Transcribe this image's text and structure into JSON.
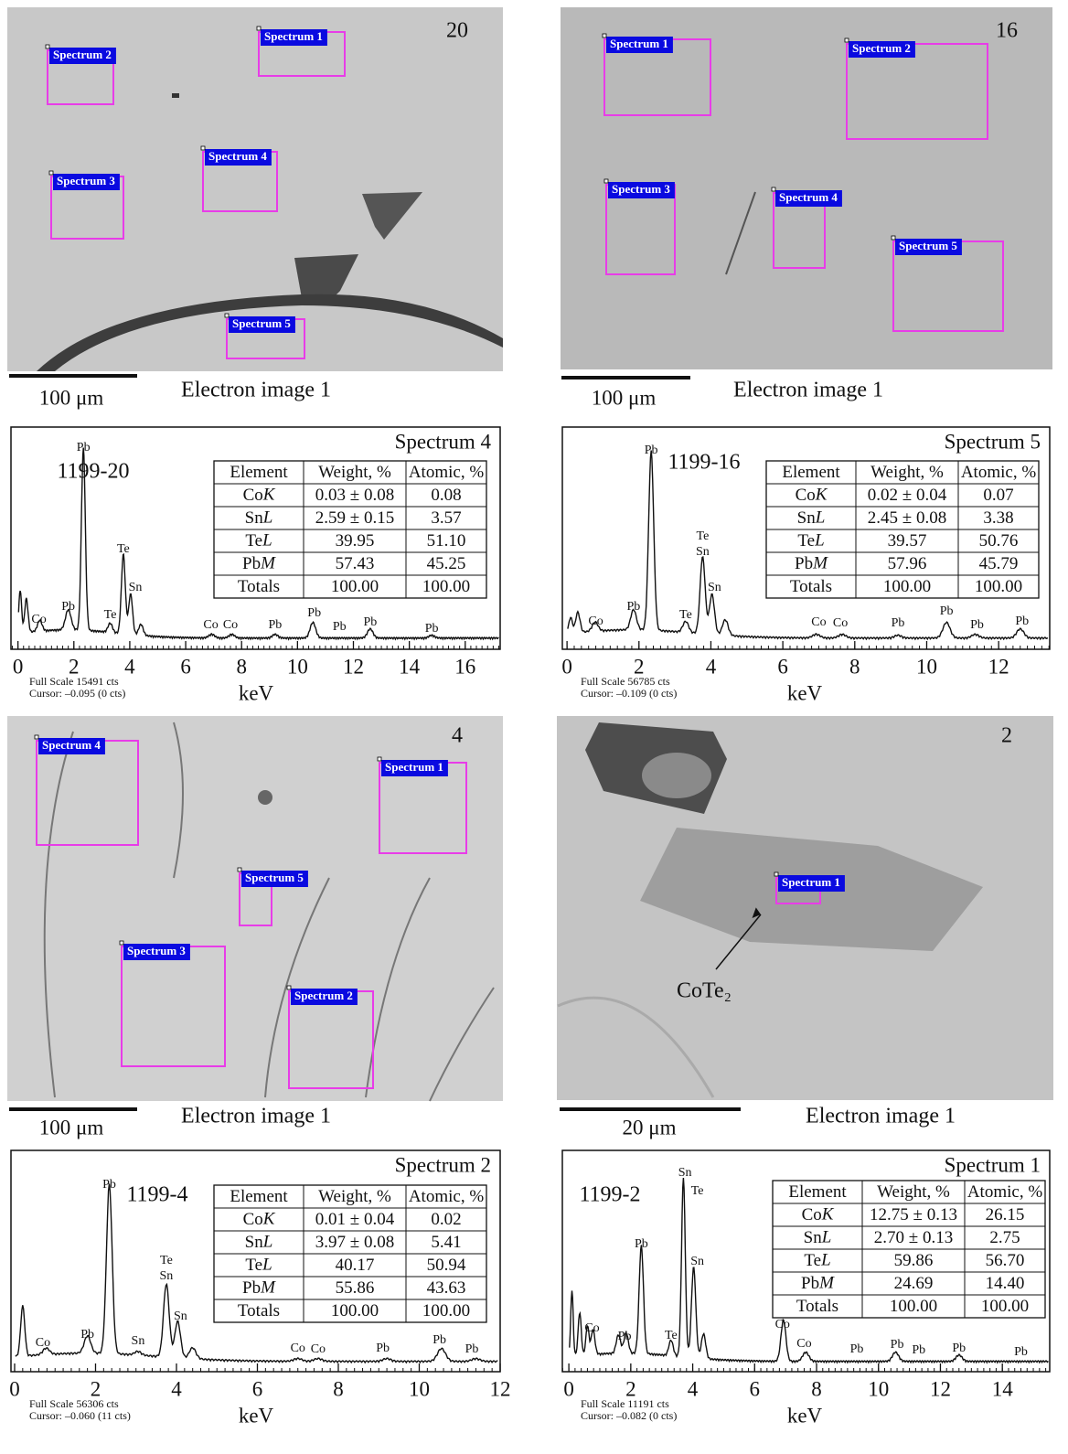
{
  "panels": [
    {
      "image": {
        "number": "20",
        "scale_bar": "100 μm",
        "caption": "Electron image 1",
        "spectra": [
          "Spectrum 1",
          "Spectrum 2",
          "Spectrum 3",
          "Spectrum 4",
          "Spectrum 5"
        ]
      },
      "spectrum": {
        "title": "Spectrum 4",
        "sample": "1199-20",
        "xlabel": "keV",
        "full_scale": "Full Scale 15491 cts",
        "cursor": "Cursor: –0.095 (0 cts)",
        "xlim": [
          -0.25,
          17.25
        ],
        "xticks": [
          0,
          2,
          4,
          6,
          8,
          10,
          12,
          14,
          16
        ],
        "peak_labels": [
          "Pb",
          "Co",
          "Pb",
          "Te",
          "Te",
          "Sn",
          "Co",
          "Co",
          "Pb",
          "Pb",
          "Pb",
          "Pb",
          "Pb"
        ],
        "table": {
          "header": [
            "Element",
            "Weight, %",
            "Atomic, %"
          ],
          "rows": [
            [
              "CoK",
              "0.03 ± 0.08",
              "0.08"
            ],
            [
              "SnL",
              "2.59 ± 0.15",
              "3.57"
            ],
            [
              "TeL",
              "39.95",
              "51.10"
            ],
            [
              "PbM",
              "57.43",
              "45.25"
            ],
            [
              "Totals",
              "100.00",
              "100.00"
            ]
          ]
        }
      }
    },
    {
      "image": {
        "number": "16",
        "scale_bar": "100 μm",
        "caption": "Electron image 1",
        "spectra": [
          "Spectrum 1",
          "Spectrum 2",
          "Spectrum 3",
          "Spectrum 4",
          "Spectrum 5"
        ]
      },
      "spectrum": {
        "title": "Spectrum 5",
        "sample": "1199-16",
        "xlabel": "keV",
        "full_scale": "Full Scale 56785 cts",
        "cursor": "Cursor: –0.109 (0 cts)",
        "xlim": [
          -0.13,
          13.42
        ],
        "xticks": [
          0,
          2,
          4,
          6,
          8,
          10,
          12
        ],
        "peak_labels": [
          "Pb",
          "Co",
          "Pb",
          "Te",
          "Te",
          "Sn",
          "Sn",
          "Co",
          "Co",
          "Pb",
          "Pb",
          "Pb",
          "Pb"
        ],
        "table": {
          "header": [
            "Element",
            "Weight, %",
            "Atomic, %"
          ],
          "rows": [
            [
              "CoK",
              "0.02 ± 0.04",
              "0.07"
            ],
            [
              "SnL",
              "2.45 ± 0.08",
              "3.38"
            ],
            [
              "TeL",
              "39.57",
              "50.76"
            ],
            [
              "PbM",
              "57.96",
              "45.79"
            ],
            [
              "Totals",
              "100.00",
              "100.00"
            ]
          ]
        }
      }
    },
    {
      "image": {
        "number": "4",
        "scale_bar": "100 μm",
        "caption": "Electron image 1",
        "spectra": [
          "Spectrum 4",
          "Spectrum 1",
          "Spectrum 5",
          "Spectrum 3",
          "Spectrum 2"
        ]
      },
      "spectrum": {
        "title": "Spectrum 2",
        "sample": "1199-4",
        "xlabel": "keV",
        "full_scale": "Full Scale 56306 cts",
        "cursor": "Cursor: –0.060 (11 cts)",
        "xlim": [
          -0.09,
          12.0
        ],
        "xticks": [
          0,
          2,
          4,
          6,
          8,
          10,
          12
        ],
        "peak_labels": [
          "Pb",
          "Co",
          "Pb",
          "Sn",
          "Te",
          "Sn",
          "Sn",
          "Co",
          "Co",
          "Pb",
          "Pb",
          "Pb"
        ],
        "table": {
          "header": [
            "Element",
            "Weight, %",
            "Atomic, %"
          ],
          "rows": [
            [
              "CoK",
              "0.01 ± 0.04",
              "0.02"
            ],
            [
              "SnL",
              "3.97 ± 0.08",
              "5.41"
            ],
            [
              "TeL",
              "40.17",
              "50.94"
            ],
            [
              "PbM",
              "55.86",
              "43.63"
            ],
            [
              "Totals",
              "100.00",
              "100.00"
            ]
          ]
        }
      }
    },
    {
      "image": {
        "number": "2",
        "scale_bar": "20 μm",
        "caption": "Electron image 1",
        "spectra": [
          "Spectrum 1"
        ],
        "annotation": "CoTe₂"
      },
      "spectrum": {
        "title": "Spectrum 1",
        "sample": "1199-2",
        "xlabel": "keV",
        "full_scale": "Full Scale 11191 cts",
        "cursor": "Cursor: –0.082 (0 cts)",
        "xlim": [
          -0.21,
          15.53
        ],
        "xticks": [
          0,
          2,
          4,
          6,
          8,
          10,
          12,
          14
        ],
        "peak_labels": [
          "Sn",
          "Te",
          "Pb",
          "Sn",
          "Co",
          "Pb",
          "Te",
          "Co",
          "Co",
          "Pb",
          "Pb",
          "Pb",
          "Pb",
          "Pb"
        ],
        "table": {
          "header": [
            "Element",
            "Weight, %",
            "Atomic, %"
          ],
          "rows": [
            [
              "CoK",
              "12.75 ± 0.13",
              "26.15"
            ],
            [
              "SnL",
              "2.70 ± 0.13",
              "2.75"
            ],
            [
              "TeL",
              "59.86",
              "56.70"
            ],
            [
              "PbM",
              "24.69",
              "14.40"
            ],
            [
              "Totals",
              "100.00",
              "100.00"
            ]
          ]
        }
      }
    }
  ]
}
